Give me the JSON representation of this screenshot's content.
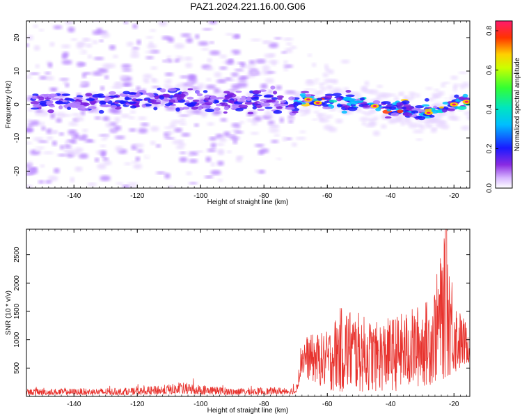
{
  "title": "PAZ1.2024.221.16.00.G06",
  "chart_data": [
    {
      "type": "heatmap",
      "xlabel": "Height of straight line (km)",
      "ylabel": "Frequency (Hz)",
      "xlim": [
        -155,
        -15
      ],
      "ylim": [
        -25,
        25
      ],
      "xticks": [
        -140,
        -120,
        -100,
        -80,
        -60,
        -40,
        -20
      ],
      "xtick_labels": [
        "-140",
        "-120",
        "-100",
        "-80",
        "-60",
        "-40",
        "-20"
      ],
      "yticks": [
        -20,
        -10,
        0,
        10,
        20
      ],
      "ytick_labels": [
        "-20",
        "-10",
        "0",
        "10",
        "20"
      ],
      "colorbar": {
        "label": "Normalized spectral amplitude",
        "range": [
          0,
          0.85
        ],
        "ticks": [
          0.0,
          0.2,
          0.4,
          0.6,
          0.8
        ],
        "tick_labels": [
          "0.0",
          "0.2",
          "0.4",
          "0.6",
          "0.8"
        ],
        "colormap": "rainbow (white-violet-blue-cyan-green-yellow-red-magenta)"
      },
      "ridge": [
        {
          "x": -152,
          "y": 0.2
        },
        {
          "x": -140,
          "y": 0.8
        },
        {
          "x": -125,
          "y": 1.0
        },
        {
          "x": -110,
          "y": 1.5
        },
        {
          "x": -95,
          "y": 1.0
        },
        {
          "x": -80,
          "y": 1.2
        },
        {
          "x": -70,
          "y": 0.5
        },
        {
          "x": -65,
          "y": 1.5
        },
        {
          "x": -60,
          "y": 0.5
        },
        {
          "x": -50,
          "y": 0.5
        },
        {
          "x": -40,
          "y": -1.0
        },
        {
          "x": -30,
          "y": -2.5
        },
        {
          "x": -25,
          "y": -1.5
        },
        {
          "x": -20,
          "y": 0.0
        },
        {
          "x": -15,
          "y": 0.8
        }
      ],
      "grid": false
    },
    {
      "type": "line",
      "xlabel": "Height of straight line (km)",
      "ylabel": "SNR (10 * v/v)",
      "xlim": [
        -155,
        -15
      ],
      "ylim": [
        0,
        2950
      ],
      "xticks": [
        -140,
        -120,
        -100,
        -80,
        -60,
        -40,
        -20
      ],
      "xtick_labels": [
        "-140",
        "-120",
        "-100",
        "-80",
        "-60",
        "-40",
        "-20"
      ],
      "yticks": [
        500,
        1000,
        1500,
        2000,
        2500
      ],
      "ytick_labels": [
        "500",
        "1000",
        "1500",
        "2000",
        "2500"
      ],
      "series": [
        {
          "color": "#e8322d",
          "envelope": [
            {
              "x": -155,
              "low": 30,
              "high": 200
            },
            {
              "x": -120,
              "low": 30,
              "high": 230
            },
            {
              "x": -105,
              "low": 40,
              "high": 380
            },
            {
              "x": -90,
              "low": 30,
              "high": 220
            },
            {
              "x": -70,
              "low": 40,
              "high": 250
            },
            {
              "x": -68,
              "low": 350,
              "high": 1050
            },
            {
              "x": -60,
              "low": 100,
              "high": 1150
            },
            {
              "x": -55,
              "low": 50,
              "high": 1650
            },
            {
              "x": -45,
              "low": 80,
              "high": 1300
            },
            {
              "x": -35,
              "low": 100,
              "high": 1500
            },
            {
              "x": -27,
              "low": 200,
              "high": 1750
            },
            {
              "x": -22.5,
              "low": 300,
              "high": 2950
            },
            {
              "x": -19,
              "low": 400,
              "high": 1600
            },
            {
              "x": -15,
              "low": 600,
              "high": 1200
            }
          ]
        }
      ],
      "grid": false
    }
  ]
}
